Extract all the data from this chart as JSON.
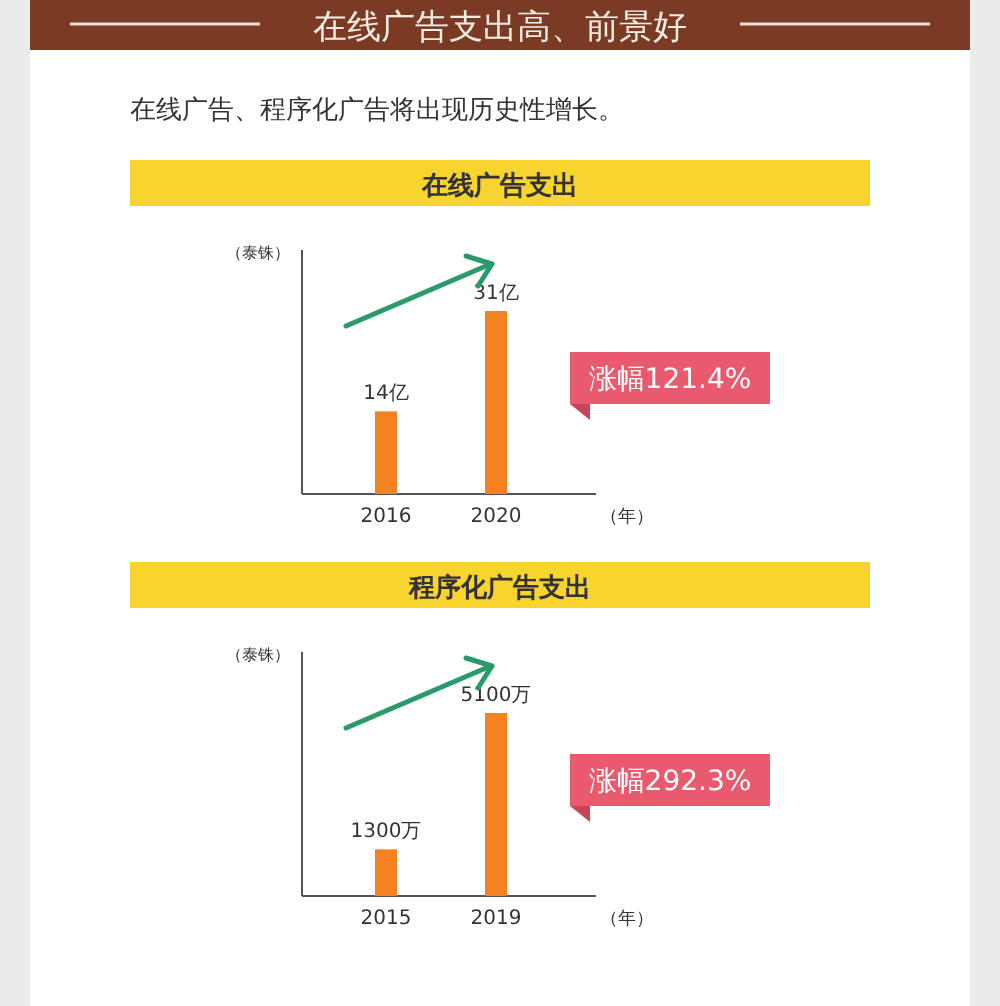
{
  "chart_data": [
    {
      "type": "other",
      "title": "在线广告支出高、前景好",
      "subtitle": "在线广告、程序化广告将出现历史性增长。"
    },
    {
      "type": "bar",
      "title": "在线广告支出",
      "ylabel": "（泰铢）",
      "xlabel": "（年）",
      "categories": [
        "2016",
        "2020"
      ],
      "values": [
        14,
        31
      ],
      "color": "#f58220",
      "value_labels": [
        "14亿",
        "31亿"
      ],
      "annotations": [
        "涨幅121.4%"
      ]
    },
    {
      "type": "bar",
      "title": "程序化广告支出",
      "ylabel": "（泰铢）",
      "xlabel": "（年）",
      "categories": [
        "2015",
        "2019"
      ],
      "values": [
        1300,
        5100
      ],
      "color": "#f58220",
      "value_labels": [
        "1300万",
        "5100万"
      ],
      "annotations": [
        "涨幅292.3%"
      ]
    }
  ]
}
